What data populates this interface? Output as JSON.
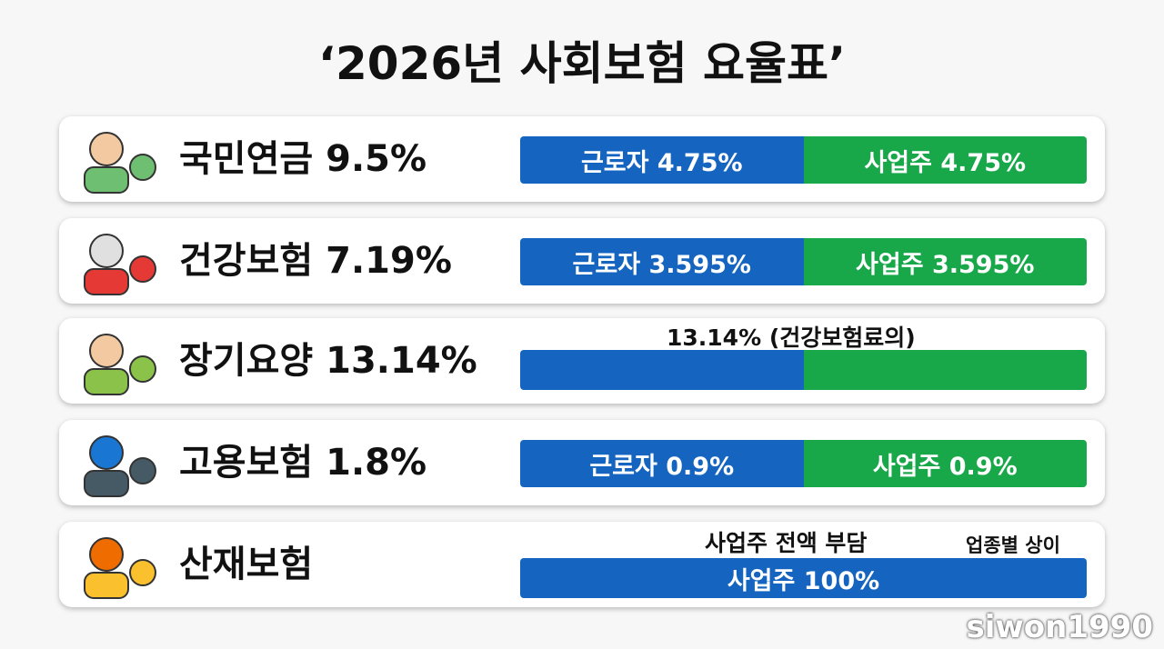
{
  "header": {
    "title": "‘2026년 사회보험 요율표’"
  },
  "rows": [
    {
      "label": "국민연금 9.5%",
      "segments": [
        "근로자 4.75%",
        "사업주 4.75%"
      ]
    },
    {
      "label": "건강보험 7.19%",
      "segments": [
        "근로자 3.595%",
        "사업주 3.595%"
      ]
    },
    {
      "label": "장기요양 13.14%",
      "note": "13.14% (건강보험료의)"
    },
    {
      "label": "고용보험 1.8%",
      "segments": [
        "근로자 0.9%",
        "사업주 0.9%"
      ]
    },
    {
      "label": "산재보험",
      "note": "사업주 전액 부담",
      "side_note": "업종별 상이",
      "segments": [
        "사업주 100%"
      ]
    }
  ],
  "watermark": "siwon1990"
}
